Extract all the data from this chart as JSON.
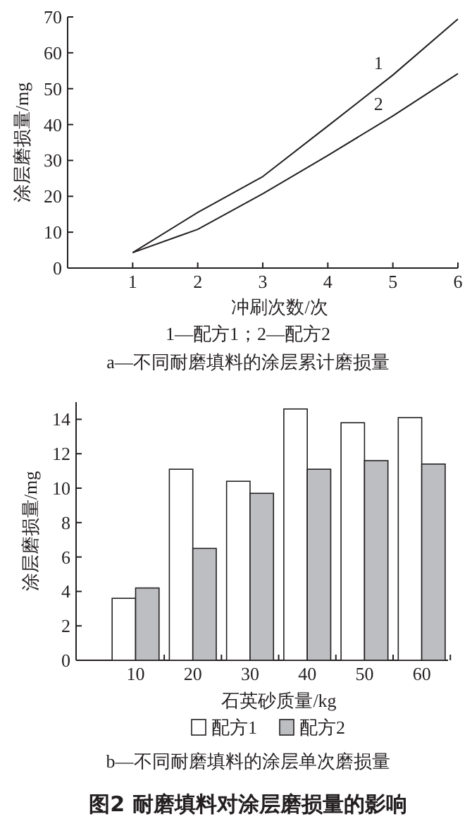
{
  "chart_data": [
    {
      "type": "line",
      "xlabel": "冲刷次数/次",
      "ylabel": "涂层磨损量/mg",
      "x": [
        1,
        2,
        3,
        4,
        5,
        6
      ],
      "series": [
        {
          "name": "1",
          "color": "#231f20",
          "values": [
            4.3,
            15.5,
            25.5,
            39.6,
            53.8,
            69.4
          ]
        },
        {
          "name": "2",
          "color": "#231f20",
          "values": [
            4.3,
            10.8,
            20.7,
            31.4,
            42.4,
            54.2
          ]
        }
      ],
      "xlim": [
        0,
        6
      ],
      "xticks": [
        1,
        2,
        3,
        4,
        5,
        6
      ],
      "ylim": [
        0,
        70
      ],
      "yticks": [
        0,
        10,
        20,
        30,
        40,
        50,
        60,
        70
      ],
      "annotations": [
        "1—配方1；2—配方2",
        "a—不同耐磨填料的涂层累计磨损量"
      ]
    },
    {
      "type": "bar",
      "xlabel": "石英砂质量/kg",
      "ylabel": "涂层磨损量/mg",
      "categories": [
        "10",
        "20",
        "30",
        "40",
        "50",
        "60"
      ],
      "series": [
        {
          "name": "配方1",
          "color": "#ffffff",
          "values": [
            3.6,
            11.1,
            10.4,
            14.6,
            13.8,
            14.1
          ]
        },
        {
          "name": "配方2",
          "color": "#bdbec2",
          "values": [
            4.2,
            6.5,
            9.7,
            11.1,
            11.6,
            11.4
          ]
        }
      ],
      "ylim": [
        0,
        15
      ],
      "yticks": [
        0,
        2,
        4,
        6,
        8,
        10,
        12,
        14
      ],
      "legend": "bottom",
      "annotations": [
        "b—不同耐磨填料的涂层单次磨损量",
        "图2  耐磨填料对涂层磨损量的影响"
      ]
    }
  ]
}
